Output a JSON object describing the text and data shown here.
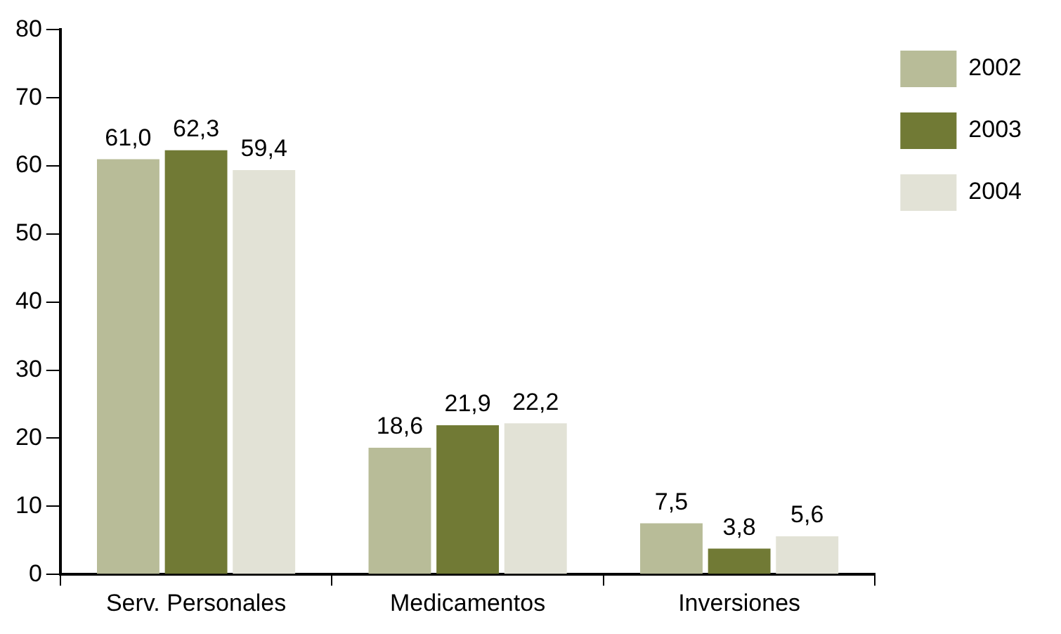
{
  "chart_data": {
    "type": "bar",
    "categories": [
      "Serv. Personales",
      "Medicamentos",
      "Inversiones"
    ],
    "series": [
      {
        "name": "2002",
        "color": "#b8bc98",
        "values": [
          61.0,
          18.6,
          7.5
        ],
        "value_labels": [
          "61,0",
          "18,6",
          "7,5"
        ]
      },
      {
        "name": "2003",
        "color": "#717a35",
        "values": [
          62.3,
          21.9,
          3.8
        ],
        "value_labels": [
          "62,3",
          "21,9",
          "3,8"
        ]
      },
      {
        "name": "2004",
        "color": "#e2e2d6",
        "values": [
          59.4,
          22.2,
          5.6
        ],
        "value_labels": [
          "59,4",
          "22,2",
          "5,6"
        ]
      }
    ],
    "ylim": [
      0,
      80
    ],
    "yticks": [
      0,
      10,
      20,
      30,
      40,
      50,
      60,
      70,
      80
    ],
    "grid": false,
    "legend": "top right"
  }
}
